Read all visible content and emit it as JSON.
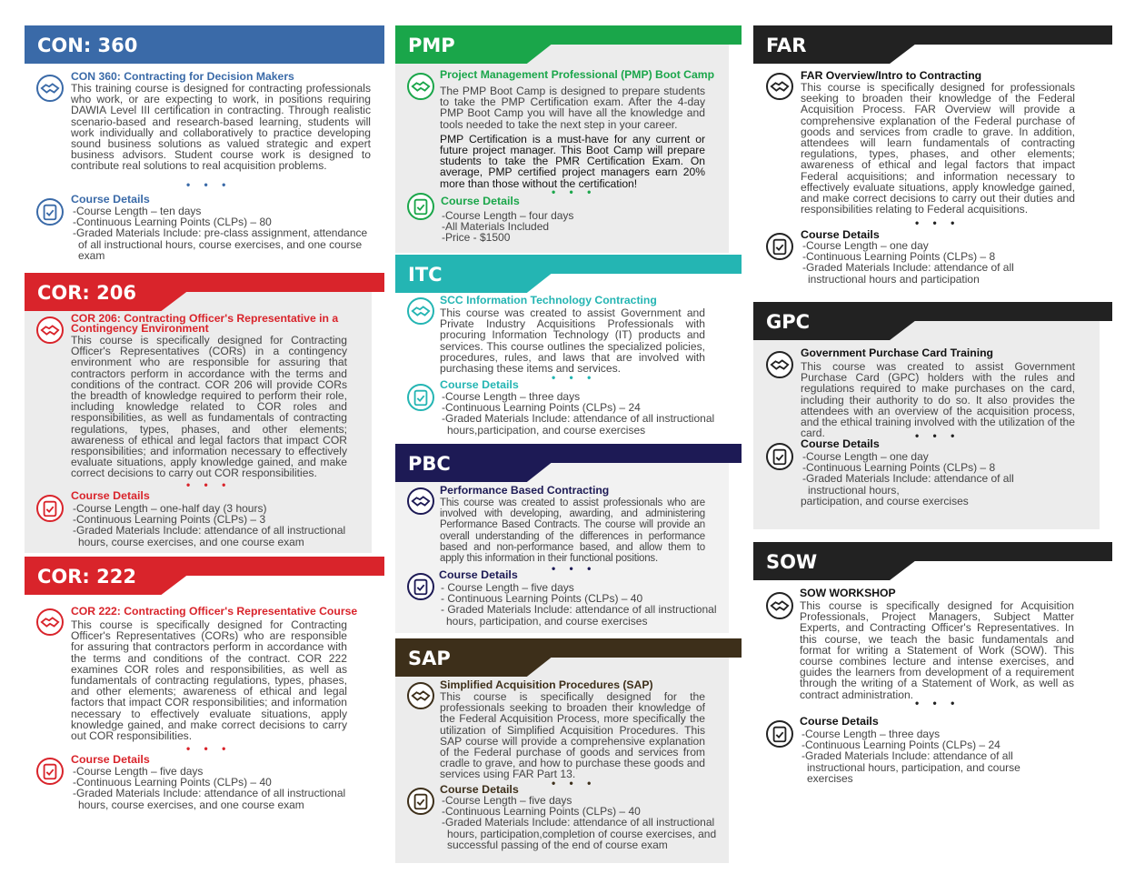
{
  "colors": {
    "con360": "#3a6aa8",
    "cor206": "#d9242b",
    "cor222": "#d9242b",
    "pmp": "#1aa64a",
    "itc": "#24b5b3",
    "pbc": "#1d1a55",
    "sap": "#3d2f1a",
    "far": "#222222",
    "gpc": "#222222",
    "sow": "#222222"
  },
  "con360": {
    "banner": "CON: 360",
    "title": "CON 360:  Contracting for Decision Makers",
    "description": "This training course is designed for contracting professionals who work, or are expecting to work, in positions requiring DAWIA Level III certification in contracting. Through realistic scenario-based and research-based learning, students will work individually and collaboratively to practice developing sound business solutions as valued strategic and expert business advisors. Student course work is designed to contribute real solutions to real acquisition problems.",
    "details_title": "Course Details",
    "details": [
      "-Course Length – ten days",
      "-Continuous Learning Points (CLPs) – 80",
      "-Graded Materials Include: pre-class assignment, attendance of all instructional hours, course exercises, and one course exam"
    ]
  },
  "cor206": {
    "banner": "COR: 206",
    "title": "COR 206:  Contracting Officer's Representative in a Contingency Environment",
    "description": "This course is specifically designed for Contracting Officer's Representatives (CORs) in a contingency environment who are responsible for assuring that contractors perform in accordance with the terms and conditions of the contract. COR 206 will provide CORs the breadth of knowledge required to perform their role, including knowledge related to COR roles and responsibilities, as well as fundamentals of contracting regulations, types, phases, and other elements; awareness of ethical and legal factors that impact COR responsibilities; and information necessary to effectively evaluate situations, apply knowledge gained, and make correct decisions to carry out COR responsibilities.",
    "details_title": "Course Details",
    "details": [
      "-Course Length – one-half day (3 hours)",
      "-Continuous Learning Points (CLPs) – 3",
      "-Graded Materials Include: attendance of all instructional hours, course exercises, and one course exam"
    ]
  },
  "cor222": {
    "banner": "COR: 222",
    "title": "COR 222:  Contracting Officer's Representative Course",
    "description": "This course is specifically designed for Contracting Officer's Representatives (CORs) who are responsible for assuring that contractors perform in accordance with the terms and conditions of the contract. COR 222 examines COR roles and responsibilities, as well as fundamentals of contracting regulations, types, phases, and other elements; awareness of ethical and legal factors that impact COR responsibilities; and information necessary to effectively evaluate situations, apply knowledge gained, and make correct decisions to carry out COR responsibilities.",
    "details_title": "Course Details",
    "details": [
      "-Course Length – five days",
      "-Continuous Learning Points (CLPs) – 40",
      "-Graded Materials Include: attendance of all instructional hours, course exercises, and one course exam"
    ]
  },
  "pmp": {
    "banner": "PMP",
    "title": "Project Management Professional (PMP) Boot Camp",
    "description": "The PMP Boot Camp is designed to prepare students to take the PMP Certification exam.  After the 4-day PMP Boot Camp you will have all the knowledge and tools needed to take the next step in your career.",
    "description2": "PMP Certification is a must-have for any current or future project manager.  This Boot Camp will prepare students to take the PMR Certification Exam.  On average, PMP certified project managers earn 20% more than those without the certification!",
    "details_title": "Course Details",
    "details": [
      "-Course Length – four days",
      "-All Materials Included",
      "-Price - $1500"
    ]
  },
  "itc": {
    "banner": "ITC",
    "title": "SCC Information Technology Contracting",
    "description": "This course was created to assist Government and Private Industry Acquisitions Professionals with procuring Information Technology (IT) products and services. This course outlines the specialized policies, procedures, rules, and laws that are involved with purchasing these items and services.",
    "details_title": "Course Details",
    "details": [
      "-Course Length – three days",
      "-Continuous Learning Points (CLPs) – 24",
      "-Graded Materials Include: attendance of all instructional hours,participation, and course exercises"
    ]
  },
  "pbc": {
    "banner": "PBC",
    "title": "Performance Based Contracting",
    "description": "This course was created to assist professionals who are involved with developing, awarding, and administering Performance Based Contracts.  The course will provide an overall understanding of the differences in performance based and non-performance based, and allow them to apply this information in their functional positions.",
    "details_title": "Course Details",
    "details": [
      "- Course Length – five days",
      "- Continuous Learning Points (CLPs) – 40",
      "- Graded Materials Include: attendance of all instructional hours, participation, and course exercises"
    ]
  },
  "sap": {
    "banner": "SAP",
    "title": "Simplified Acquisition Procedures (SAP)",
    "description": "This course is specifically designed for the professionals seeking to broaden their knowledge of the Federal Acquisition Process, more specifically the utilization of Simplified Acquisition Procedures. This SAP course will provide a comprehensive explanation of the Federal purchase of goods and services from cradle to grave, and how to purchase these goods and services using FAR Part 13.",
    "details_title": "Course Details",
    "details": [
      "-Course Length – five days",
      "-Continuous Learning Points (CLPs) – 40",
      "-Graded Materials Include: attendance of all instructional hours, participation,completion of course exercises, and successful passing of the end of course exam"
    ]
  },
  "far": {
    "banner": "FAR",
    "title": "FAR Overview/Intro to Contracting",
    "description": "This course is specifically designed for professionals seeking to broaden their knowledge of the Federal Acquisition Process. FAR Overview will provide a comprehensive explanation of the Federal purchase of goods and services from cradle to grave. In addition, attendees will learn fundamentals of contracting regulations, types, phases, and other elements; awareness of ethical and legal factors that impact Federal acquisitions; and information necessary to effectively evaluate situations, apply knowledge gained, and make correct decisions to carry out their duties and responsibilities relating to Federal acquisitions.",
    "details_title": "Course Details",
    "details": [
      "-Course Length – one day",
      "-Continuous Learning Points (CLPs) – 8",
      "-Graded Materials Include: attendance of all instructional hours and participation"
    ]
  },
  "gpc": {
    "banner": "GPC",
    "title": "Government Purchase Card Training",
    "description": "This course was created to assist Government Purchase Card (GPC) holders with the rules and regulations required to make purchases on the card, including their authority to do so.  It also provides the attendees with an overview of the acquisition process, and the ethical training involved with the utilization of the card.",
    "details_title": "Course Details",
    "details": [
      "-Course Length – one day",
      "-Continuous Learning Points (CLPs) – 8",
      "-Graded Materials Include: attendance of all instructional hours,",
      "participation, and course exercises"
    ]
  },
  "sow": {
    "banner": "SOW",
    "title": "SOW WORKSHOP",
    "description": "This course is specifically designed for Acquisition Professionals, Project Managers, Subject Matter Experts, and Contracting Officer's Representatives. In this course, we teach the basic fundamentals and format for writing a Statement of Work (SOW).  This course combines lecture and intense exercises, and guides the learners from development of a requirement through the writing of a Statement of Work, as well as contract administration.",
    "details_title": "Course Details",
    "details": [
      "-Course Length – three days",
      "-Continuous Learning Points (CLPs) – 24",
      "-Graded Materials Include: attendance of all instructional hours, participation, and course exercises"
    ]
  },
  "dots": "• • •"
}
